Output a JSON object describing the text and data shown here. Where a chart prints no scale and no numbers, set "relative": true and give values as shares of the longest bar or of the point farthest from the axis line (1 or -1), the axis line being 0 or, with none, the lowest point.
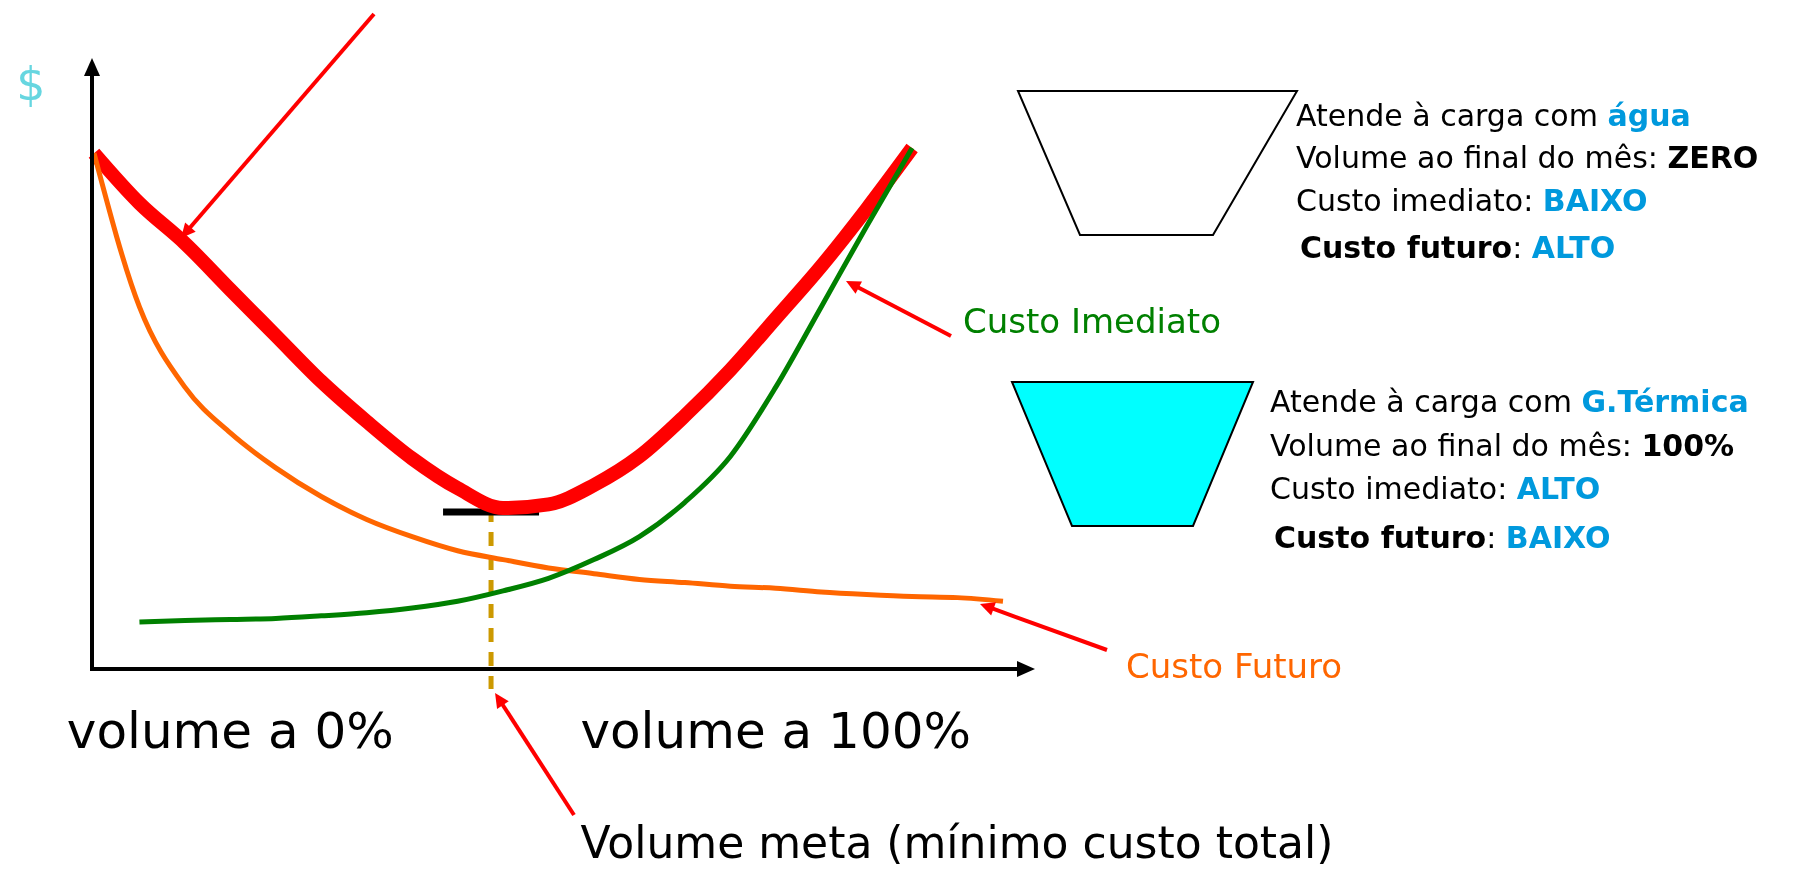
{
  "chart_data": {
    "type": "line",
    "relative": true,
    "ylabel": "$",
    "categories": [
      null,
      null,
      null,
      "volume a 0%",
      null,
      null,
      null,
      null,
      null,
      null,
      null,
      null,
      null,
      null,
      null,
      "volume a 100%",
      null,
      null,
      null,
      null,
      null
    ],
    "series": [
      {
        "color": "#ff0000",
        "values": [
          0.99,
          0.894,
          0.817,
          0.728,
          0.64,
          0.552,
          0.475,
          0.404,
          0.347,
          0.309,
          0.316,
          0.353,
          0.408,
          0.486,
          0.574,
          0.673,
          0.773,
          0.883,
          1,
          null,
          null
        ]
      },
      {
        "name": "Custo Futuro",
        "color": "#ff6600",
        "values": [
          0.99,
          0.695,
          0.541,
          0.453,
          0.386,
          0.331,
          0.287,
          0.254,
          0.227,
          0.21,
          0.194,
          0.183,
          0.172,
          0.166,
          0.159,
          0.155,
          0.148,
          0.143,
          0.139,
          0.137,
          0.13
        ]
      },
      {
        "name": "Custo Imediato",
        "color": "#008000",
        "values": [
          null,
          0.09,
          0.093,
          0.095,
          0.097,
          0.102,
          0.108,
          0.117,
          0.13,
          0.15,
          0.174,
          0.21,
          0.254,
          0.32,
          0.408,
          0.541,
          0.695,
          0.85,
          1,
          null,
          null
        ]
      }
    ],
    "annotations": [
      "Volume meta (mínimo custo total)",
      "Atende à carga com água",
      "Volume ao final do mês: ZERO",
      "Custo imediato: BAIXO",
      "Custo futuro: ALTO",
      "Atende à carga com G.Térmica",
      "Volume ao final do mês: 100%",
      "Custo imediato: ALTO",
      "Custo futuro: BAIXO"
    ]
  }
}
